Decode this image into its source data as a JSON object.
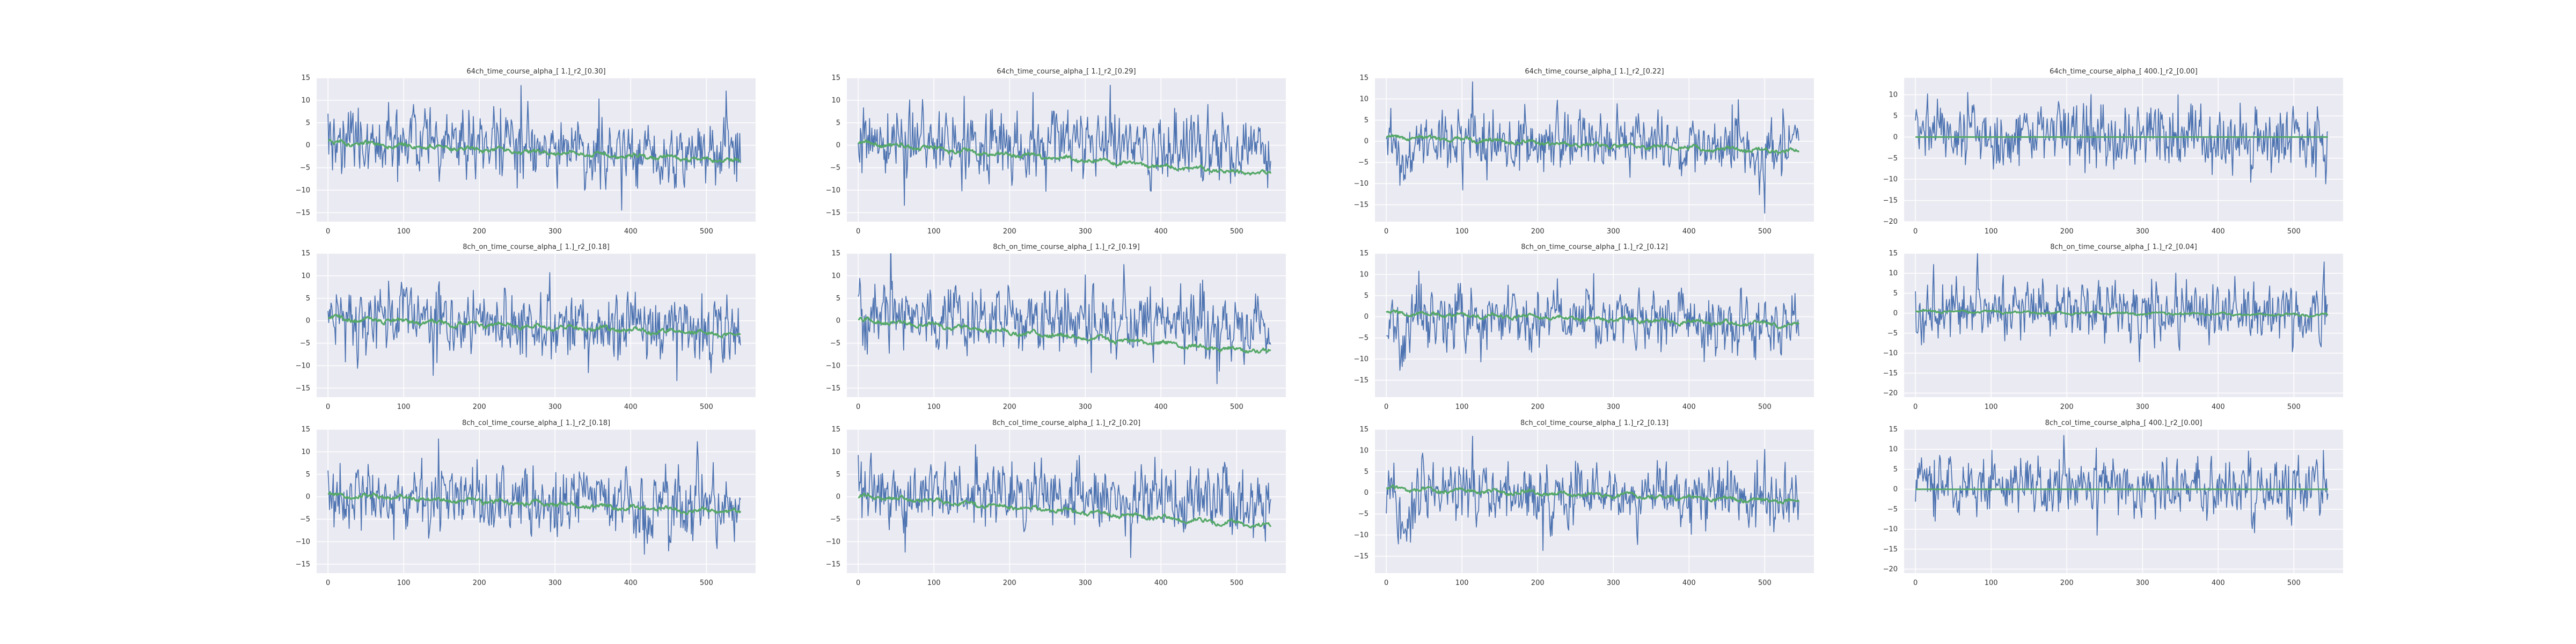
{
  "theme": {
    "panel_bg": "#eaeaf2",
    "grid_color": "#ffffff",
    "raw_series_color": "#4c72b0",
    "fit_series_color": "#55a868",
    "text_color": "#333333"
  },
  "chart_data": [
    {
      "type": "line",
      "title": "64ch_time_course_alpha_[ 1.]_r2_[0.30]",
      "xlabel": "",
      "ylabel": "",
      "xlim": [
        -15,
        565
      ],
      "ylim": [
        -17,
        15
      ],
      "xticks": [
        0,
        100,
        200,
        300,
        400,
        500
      ],
      "yticks": [
        15,
        10,
        5,
        0,
        -5,
        -10,
        -15
      ],
      "grid": true,
      "series_defs": [
        {
          "length": 546,
          "amp": 4.4,
          "trend": [
            1.5,
            -2.5
          ],
          "spike": 0.03
        },
        {
          "length": 546,
          "amp": 0.9,
          "trend": [
            0.6,
            -3.5
          ],
          "smooth": true
        }
      ]
    },
    {
      "type": "line",
      "title": "64ch_time_course_alpha_[ 1.]_r2_[0.29]",
      "xlabel": "",
      "ylabel": "",
      "xlim": [
        -15,
        565
      ],
      "ylim": [
        -17,
        15
      ],
      "xticks": [
        0,
        100,
        200,
        300,
        400,
        500
      ],
      "yticks": [
        15,
        10,
        5,
        0,
        -5,
        -10,
        -15
      ],
      "grid": true,
      "series_defs": [
        {
          "length": 546,
          "amp": 4.4,
          "trend": [
            1.5,
            -1.5
          ],
          "spike": 0.03
        },
        {
          "length": 546,
          "amp": 0.9,
          "trend": [
            0.5,
            -6.5
          ],
          "smooth": true
        }
      ]
    },
    {
      "type": "line",
      "title": "64ch_time_course_alpha_[ 1.]_r2_[0.22]",
      "xlabel": "",
      "ylabel": "",
      "xlim": [
        -15,
        565
      ],
      "ylim": [
        -19,
        15
      ],
      "xticks": [
        0,
        100,
        200,
        300,
        400,
        500
      ],
      "yticks": [
        15,
        10,
        5,
        0,
        -5,
        -10,
        -15
      ],
      "grid": true,
      "series_defs": [
        {
          "length": 546,
          "amp": 4.2,
          "trend": [
            0.5,
            -1.5
          ],
          "spike": 0.03,
          "dip": [
            10,
            40,
            -8
          ]
        },
        {
          "length": 546,
          "amp": 0.9,
          "trend": [
            1.0,
            -2.5
          ],
          "smooth": true
        }
      ]
    },
    {
      "type": "line",
      "title": "64ch_time_course_alpha_[ 400.]_r2_[0.00]",
      "xlabel": "",
      "ylabel": "",
      "xlim": [
        -15,
        565
      ],
      "ylim": [
        -20,
        14
      ],
      "xticks": [
        0,
        100,
        200,
        300,
        400,
        500
      ],
      "yticks": [
        10,
        5,
        0,
        -5,
        -10,
        -15,
        -20
      ],
      "grid": true,
      "series_defs": [
        {
          "length": 546,
          "amp": 4.3,
          "trend": [
            1.0,
            0.0
          ],
          "spike": 0.035
        },
        {
          "length": 546,
          "amp": 0.0,
          "trend": [
            0.0,
            0.0
          ],
          "smooth": true
        }
      ]
    },
    {
      "type": "line",
      "title": "8ch_on_time_course_alpha_[ 1.]_r2_[0.18]",
      "xlabel": "",
      "ylabel": "",
      "xlim": [
        -15,
        565
      ],
      "ylim": [
        -17,
        15
      ],
      "xticks": [
        0,
        100,
        200,
        300,
        400,
        500
      ],
      "yticks": [
        15,
        10,
        5,
        0,
        -5,
        -10,
        -15
      ],
      "grid": true,
      "series_defs": [
        {
          "length": 546,
          "amp": 4.4,
          "trend": [
            1.0,
            -2.5
          ],
          "spike": 0.03
        },
        {
          "length": 546,
          "amp": 0.9,
          "trend": [
            0.5,
            -3.0
          ],
          "smooth": true
        }
      ]
    },
    {
      "type": "line",
      "title": "8ch_on_time_course_alpha_[ 1.]_r2_[0.19]",
      "xlabel": "",
      "ylabel": "",
      "xlim": [
        -15,
        565
      ],
      "ylim": [
        -17,
        15
      ],
      "xticks": [
        0,
        100,
        200,
        300,
        400,
        500
      ],
      "yticks": [
        15,
        10,
        5,
        0,
        -5,
        -10,
        -15
      ],
      "grid": true,
      "series_defs": [
        {
          "length": 546,
          "amp": 4.4,
          "trend": [
            1.5,
            -1.5
          ],
          "spike": 0.03
        },
        {
          "length": 546,
          "amp": 0.9,
          "trend": [
            0.2,
            -7.0
          ],
          "smooth": true
        }
      ]
    },
    {
      "type": "line",
      "title": "8ch_on_time_course_alpha_[ 1.]_r2_[0.12]",
      "xlabel": "",
      "ylabel": "",
      "xlim": [
        -15,
        565
      ],
      "ylim": [
        -19,
        15
      ],
      "xticks": [
        0,
        100,
        200,
        300,
        400,
        500
      ],
      "yticks": [
        15,
        10,
        5,
        0,
        -5,
        -10,
        -15
      ],
      "grid": true,
      "series_defs": [
        {
          "length": 546,
          "amp": 4.2,
          "trend": [
            0.5,
            -1.5
          ],
          "spike": 0.03,
          "dip": [
            10,
            40,
            -8
          ]
        },
        {
          "length": 546,
          "amp": 0.9,
          "trend": [
            1.0,
            -2.0
          ],
          "smooth": true
        }
      ]
    },
    {
      "type": "line",
      "title": "8ch_on_time_course_alpha_[ 1.]_r2_[0.04]",
      "xlabel": "",
      "ylabel": "",
      "xlim": [
        -15,
        565
      ],
      "ylim": [
        -21,
        15
      ],
      "xticks": [
        0,
        100,
        200,
        300,
        400,
        500
      ],
      "yticks": [
        15,
        10,
        5,
        0,
        -5,
        -10,
        -15,
        -20
      ],
      "grid": true,
      "series_defs": [
        {
          "length": 546,
          "amp": 4.3,
          "trend": [
            1.0,
            0.0
          ],
          "spike": 0.035
        },
        {
          "length": 546,
          "amp": 0.5,
          "trend": [
            0.5,
            -0.5
          ],
          "smooth": true
        }
      ]
    },
    {
      "type": "line",
      "title": "8ch_col_time_course_alpha_[ 1.]_r2_[0.18]",
      "xlabel": "",
      "ylabel": "",
      "xlim": [
        -15,
        565
      ],
      "ylim": [
        -17,
        15
      ],
      "xticks": [
        0,
        100,
        200,
        300,
        400,
        500
      ],
      "yticks": [
        15,
        10,
        5,
        0,
        -5,
        -10,
        -15
      ],
      "grid": true,
      "series_defs": [
        {
          "length": 546,
          "amp": 4.4,
          "trend": [
            1.0,
            -2.5
          ],
          "spike": 0.03
        },
        {
          "length": 546,
          "amp": 0.9,
          "trend": [
            0.5,
            -3.5
          ],
          "smooth": true
        }
      ]
    },
    {
      "type": "line",
      "title": "8ch_col_time_course_alpha_[ 1.]_r2_[0.20]",
      "xlabel": "",
      "ylabel": "",
      "xlim": [
        -15,
        565
      ],
      "ylim": [
        -17,
        15
      ],
      "xticks": [
        0,
        100,
        200,
        300,
        400,
        500
      ],
      "yticks": [
        15,
        10,
        5,
        0,
        -5,
        -10,
        -15
      ],
      "grid": true,
      "series_defs": [
        {
          "length": 546,
          "amp": 4.4,
          "trend": [
            1.5,
            -1.5
          ],
          "spike": 0.03
        },
        {
          "length": 546,
          "amp": 0.9,
          "trend": [
            0.2,
            -6.5
          ],
          "smooth": true
        }
      ]
    },
    {
      "type": "line",
      "title": "8ch_col_time_course_alpha_[ 1.]_r2_[0.13]",
      "xlabel": "",
      "ylabel": "",
      "xlim": [
        -15,
        565
      ],
      "ylim": [
        -19,
        15
      ],
      "xticks": [
        0,
        100,
        200,
        300,
        400,
        500
      ],
      "yticks": [
        15,
        10,
        5,
        0,
        -5,
        -10,
        -15
      ],
      "grid": true,
      "series_defs": [
        {
          "length": 546,
          "amp": 4.2,
          "trend": [
            0.5,
            -1.5
          ],
          "spike": 0.03,
          "dip": [
            10,
            40,
            -9
          ]
        },
        {
          "length": 546,
          "amp": 0.9,
          "trend": [
            1.0,
            -2.0
          ],
          "smooth": true
        }
      ]
    },
    {
      "type": "line",
      "title": "8ch_col_time_course_alpha_[ 400.]_r2_[0.00]",
      "xlabel": "",
      "ylabel": "",
      "xlim": [
        -15,
        565
      ],
      "ylim": [
        -21,
        15
      ],
      "xticks": [
        0,
        100,
        200,
        300,
        400,
        500
      ],
      "yticks": [
        15,
        10,
        5,
        0,
        -5,
        -10,
        -15,
        -20
      ],
      "grid": true,
      "series_defs": [
        {
          "length": 546,
          "amp": 4.3,
          "trend": [
            1.0,
            0.0
          ],
          "spike": 0.035
        },
        {
          "length": 546,
          "amp": 0.0,
          "trend": [
            0.0,
            0.0
          ],
          "smooth": true
        }
      ]
    }
  ]
}
